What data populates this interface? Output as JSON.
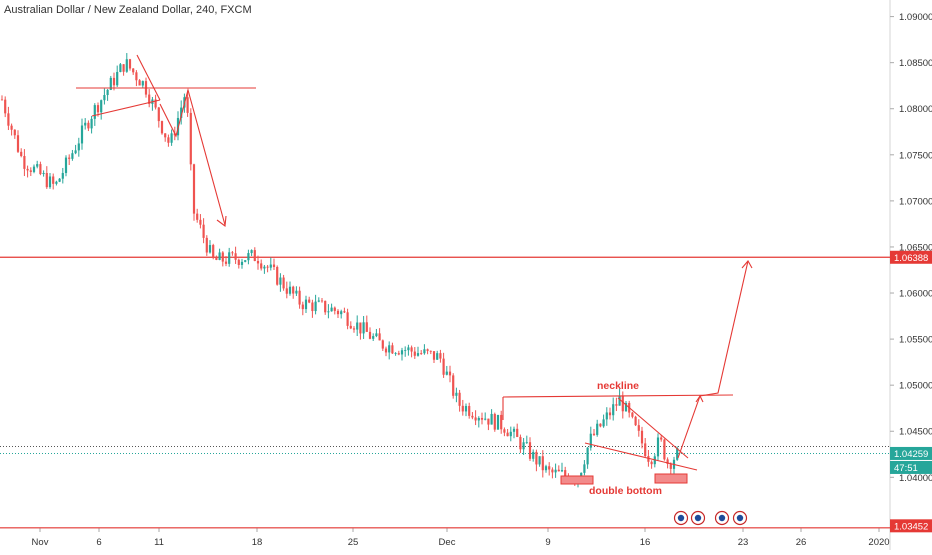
{
  "chart_title": "Australian Dollar / New Zealand Dollar, 240, FXCM",
  "chart_data": {
    "type": "candlestick",
    "symbol": "Australian Dollar / New Zealand Dollar",
    "timeframe": "240",
    "source": "FXCM",
    "y_axis": {
      "ticks": [
        "1.09000",
        "1.08500",
        "1.08000",
        "1.07500",
        "1.07000",
        "1.06500",
        "1.06000",
        "1.05500",
        "1.05000",
        "1.04500",
        "1.04000"
      ],
      "range": [
        1.0345,
        1.0918
      ]
    },
    "x_axis": {
      "ticks": [
        "Nov",
        "6",
        "11",
        "18",
        "25",
        "Dec",
        "9",
        "16",
        "23",
        "26",
        "2020"
      ]
    },
    "price_labels": [
      {
        "value": "1.06388",
        "color": "#e53935"
      },
      {
        "value": "1.04259",
        "color": "#26a69a"
      },
      {
        "value": "47:51",
        "color": "#26a69a"
      },
      {
        "value": "1.03452",
        "color": "#e53935"
      }
    ],
    "horizontal_levels": [
      1.06388,
      1.04335,
      1.04259,
      1.03452
    ],
    "annotations": [
      "neckline",
      "double bottom"
    ],
    "colors": {
      "up": "#26a69a",
      "down": "#ef5350",
      "drawing": "#e53935"
    },
    "path_key_closes": [
      {
        "x": "Nov",
        "y": 1.081
      },
      {
        "x": "3",
        "y": 1.0745
      },
      {
        "x": "5",
        "y": 1.0715
      },
      {
        "x": "6",
        "y": 1.0795
      },
      {
        "x": "8",
        "y": 1.085
      },
      {
        "x": "10",
        "y": 1.0825
      },
      {
        "x": "12",
        "y": 1.076
      },
      {
        "x": "13",
        "y": 1.082
      },
      {
        "x": "14",
        "y": 1.069
      },
      {
        "x": "15",
        "y": 1.0635
      },
      {
        "x": "18",
        "y": 1.064
      },
      {
        "x": "22",
        "y": 1.059
      },
      {
        "x": "25",
        "y": 1.058
      },
      {
        "x": "28",
        "y": 1.0545
      },
      {
        "x": "Dec",
        "y": 1.053
      },
      {
        "x": "3",
        "y": 1.048
      },
      {
        "x": "5",
        "y": 1.0455
      },
      {
        "x": "9",
        "y": 1.0405
      },
      {
        "x": "11",
        "y": 1.04
      },
      {
        "x": "12",
        "y": 1.044
      },
      {
        "x": "14",
        "y": 1.0485
      },
      {
        "x": "16",
        "y": 1.042
      },
      {
        "x": "17",
        "y": 1.044
      },
      {
        "x": "18",
        "y": 1.0415
      },
      {
        "x": "19",
        "y": 1.0426
      }
    ]
  }
}
